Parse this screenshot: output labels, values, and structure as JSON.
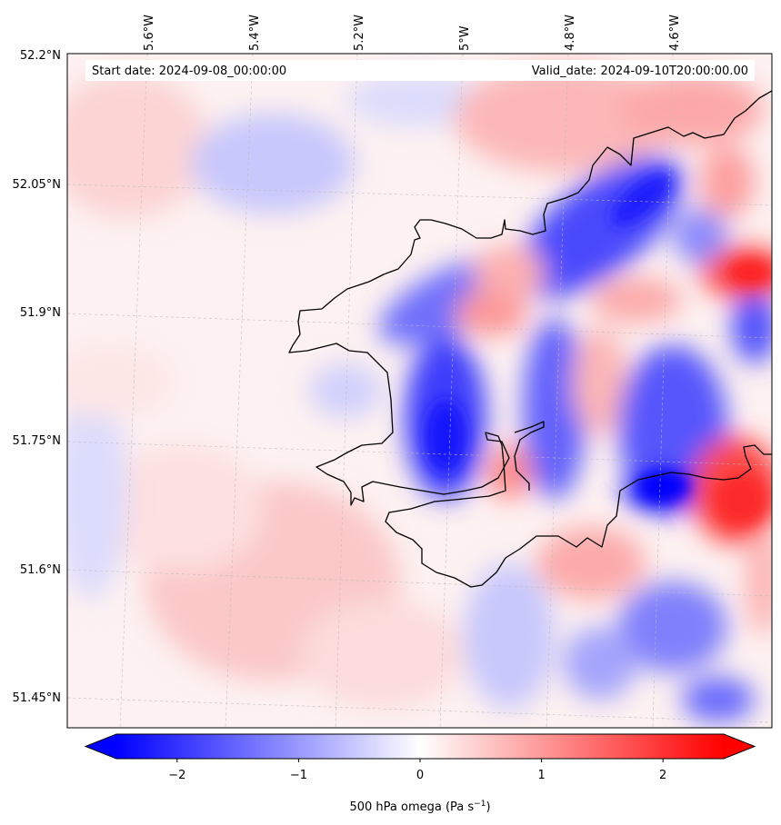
{
  "info_box": {
    "start_label": "Start date: 2024-09-08_00:00:00",
    "valid_label": "Valid_date: 2024-09-10T20:00:00.00"
  },
  "map": {
    "longitude_labels": [
      "5.6°W",
      "5.4°W",
      "5.2°W",
      "5°W",
      "4.8°W",
      "4.6°W"
    ],
    "latitude_labels": [
      "52.2°N",
      "52.05°N",
      "51.9°N",
      "51.75°N",
      "51.6°N",
      "51.45°N"
    ],
    "colors": {
      "negative": "#0000ff",
      "neutral": "#ffffff",
      "positive": "#ff0000",
      "coastline": "#000000",
      "gridline": "#bbbbbb"
    }
  },
  "colorbar": {
    "ticks": [
      "−2",
      "−1",
      "0",
      "1",
      "2"
    ],
    "tick_values": [
      -2,
      -1,
      0,
      1,
      2
    ],
    "range": [
      -2.5,
      2.5
    ],
    "label_main": "500 hPa omega (Pa s",
    "label_sup": "−1",
    "label_end": ")",
    "extend": "both"
  }
}
